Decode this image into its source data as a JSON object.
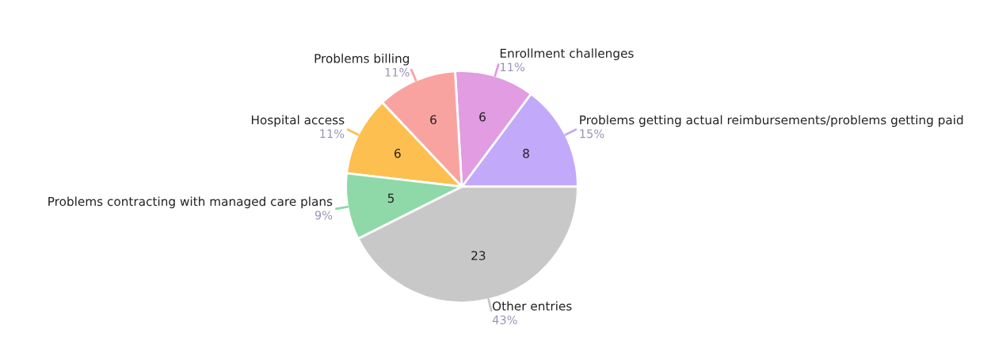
{
  "chart_data": {
    "type": "pie",
    "categories": [
      "Problems getting actual reimbursements/problems getting paid",
      "Enrollment challenges",
      "Problems billing",
      "Hospital access",
      "Problems contracting with managed care plans",
      "Other entries"
    ],
    "values": [
      8,
      6,
      6,
      6,
      5,
      23
    ],
    "colors": [
      "#c3a9f9",
      "#e19ce2",
      "#f9a3a1",
      "#fdbf50",
      "#8fd9a9",
      "#c8c8c8"
    ],
    "annotations": [
      {
        "text": "15%",
        "x": "Problems getting actual reimbursements/problems getting paid"
      },
      {
        "text": "11%",
        "x": "Enrollment challenges"
      },
      {
        "text": "11%",
        "x": "Problems billing"
      },
      {
        "text": "11%",
        "x": "Hospital access"
      },
      {
        "text": "9%",
        "x": "Problems contracting with managed care plans"
      },
      {
        "text": "43%",
        "x": "Other entries"
      }
    ],
    "data_labels": true
  }
}
